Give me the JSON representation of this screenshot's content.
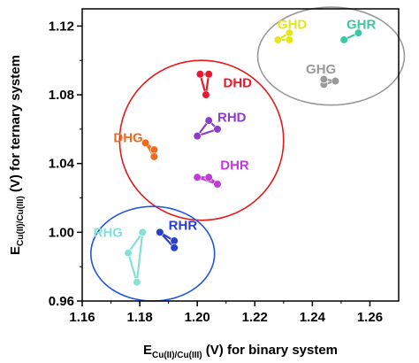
{
  "chart_data": {
    "type": "scatter",
    "xlabel": {
      "main": "E",
      "sub": "Cu(II)/Cu(III)",
      "rest": " (V) for binary system"
    },
    "ylabel": {
      "main": "E",
      "sub": "Cu(II)/Cu(III)",
      "rest": " (V) for ternary system"
    },
    "xlim": [
      1.16,
      1.27
    ],
    "ylim": [
      0.96,
      1.13
    ],
    "xticks": [
      "1.16",
      "1.18",
      "1.20",
      "1.22",
      "1.24",
      "1.26"
    ],
    "yticks": [
      "0.96",
      "1.00",
      "1.04",
      "1.08",
      "1.12"
    ],
    "grid": false,
    "series": [
      {
        "name": "GHD",
        "color": "#e6e619",
        "label_at": [
          1.233,
          1.121
        ],
        "points": [
          [
            1.228,
            1.112
          ],
          [
            1.232,
            1.116
          ],
          [
            1.232,
            1.112
          ]
        ]
      },
      {
        "name": "GHR",
        "color": "#3cc8a5",
        "label_at": [
          1.257,
          1.121
        ],
        "points": [
          [
            1.251,
            1.112
          ],
          [
            1.256,
            1.116
          ]
        ]
      },
      {
        "name": "GHG",
        "color": "#999999",
        "label_at": [
          1.243,
          1.095
        ],
        "points": [
          [
            1.244,
            1.086
          ],
          [
            1.244,
            1.089
          ],
          [
            1.248,
            1.088
          ]
        ]
      },
      {
        "name": "DHD",
        "color": "#e8192c",
        "label_at": [
          1.214,
          1.087
        ],
        "points": [
          [
            1.201,
            1.092
          ],
          [
            1.204,
            1.092
          ],
          [
            1.203,
            1.08
          ]
        ]
      },
      {
        "name": "RHD",
        "color": "#8b3fc8",
        "label_at": [
          1.212,
          1.067
        ],
        "points": [
          [
            1.2,
            1.056
          ],
          [
            1.204,
            1.065
          ],
          [
            1.207,
            1.06
          ]
        ]
      },
      {
        "name": "DHG",
        "color": "#f06a1a",
        "label_at": [
          1.176,
          1.055
        ],
        "points": [
          [
            1.182,
            1.052
          ],
          [
            1.185,
            1.048
          ],
          [
            1.185,
            1.044
          ]
        ]
      },
      {
        "name": "DHR",
        "color": "#c13bd8",
        "label_at": [
          1.213,
          1.039
        ],
        "points": [
          [
            1.2,
            1.032
          ],
          [
            1.204,
            1.032
          ],
          [
            1.207,
            1.028
          ]
        ]
      },
      {
        "name": "RHG",
        "color": "#86e0d6",
        "label_at": [
          1.169,
          1.0
        ],
        "points": [
          [
            1.176,
            0.988
          ],
          [
            1.181,
            1.0
          ],
          [
            1.179,
            0.971
          ]
        ]
      },
      {
        "name": "RHR",
        "color": "#2a3fd0",
        "label_at": [
          1.195,
          1.004
        ],
        "points": [
          [
            1.187,
            1.0
          ],
          [
            1.192,
            0.995
          ],
          [
            1.192,
            0.991
          ]
        ]
      }
    ],
    "groups": [
      {
        "color": "#999999",
        "center": [
          1.2465,
          1.1025
        ],
        "rx": 0.0255,
        "ry": 0.0285
      },
      {
        "color": "#e31a1c",
        "center": [
          1.2015,
          1.0535
        ],
        "rx": 0.0285,
        "ry": 0.0465
      },
      {
        "color": "#2255dd",
        "center": [
          1.1845,
          0.9875
        ],
        "rx": 0.0215,
        "ry": 0.0275
      }
    ]
  }
}
